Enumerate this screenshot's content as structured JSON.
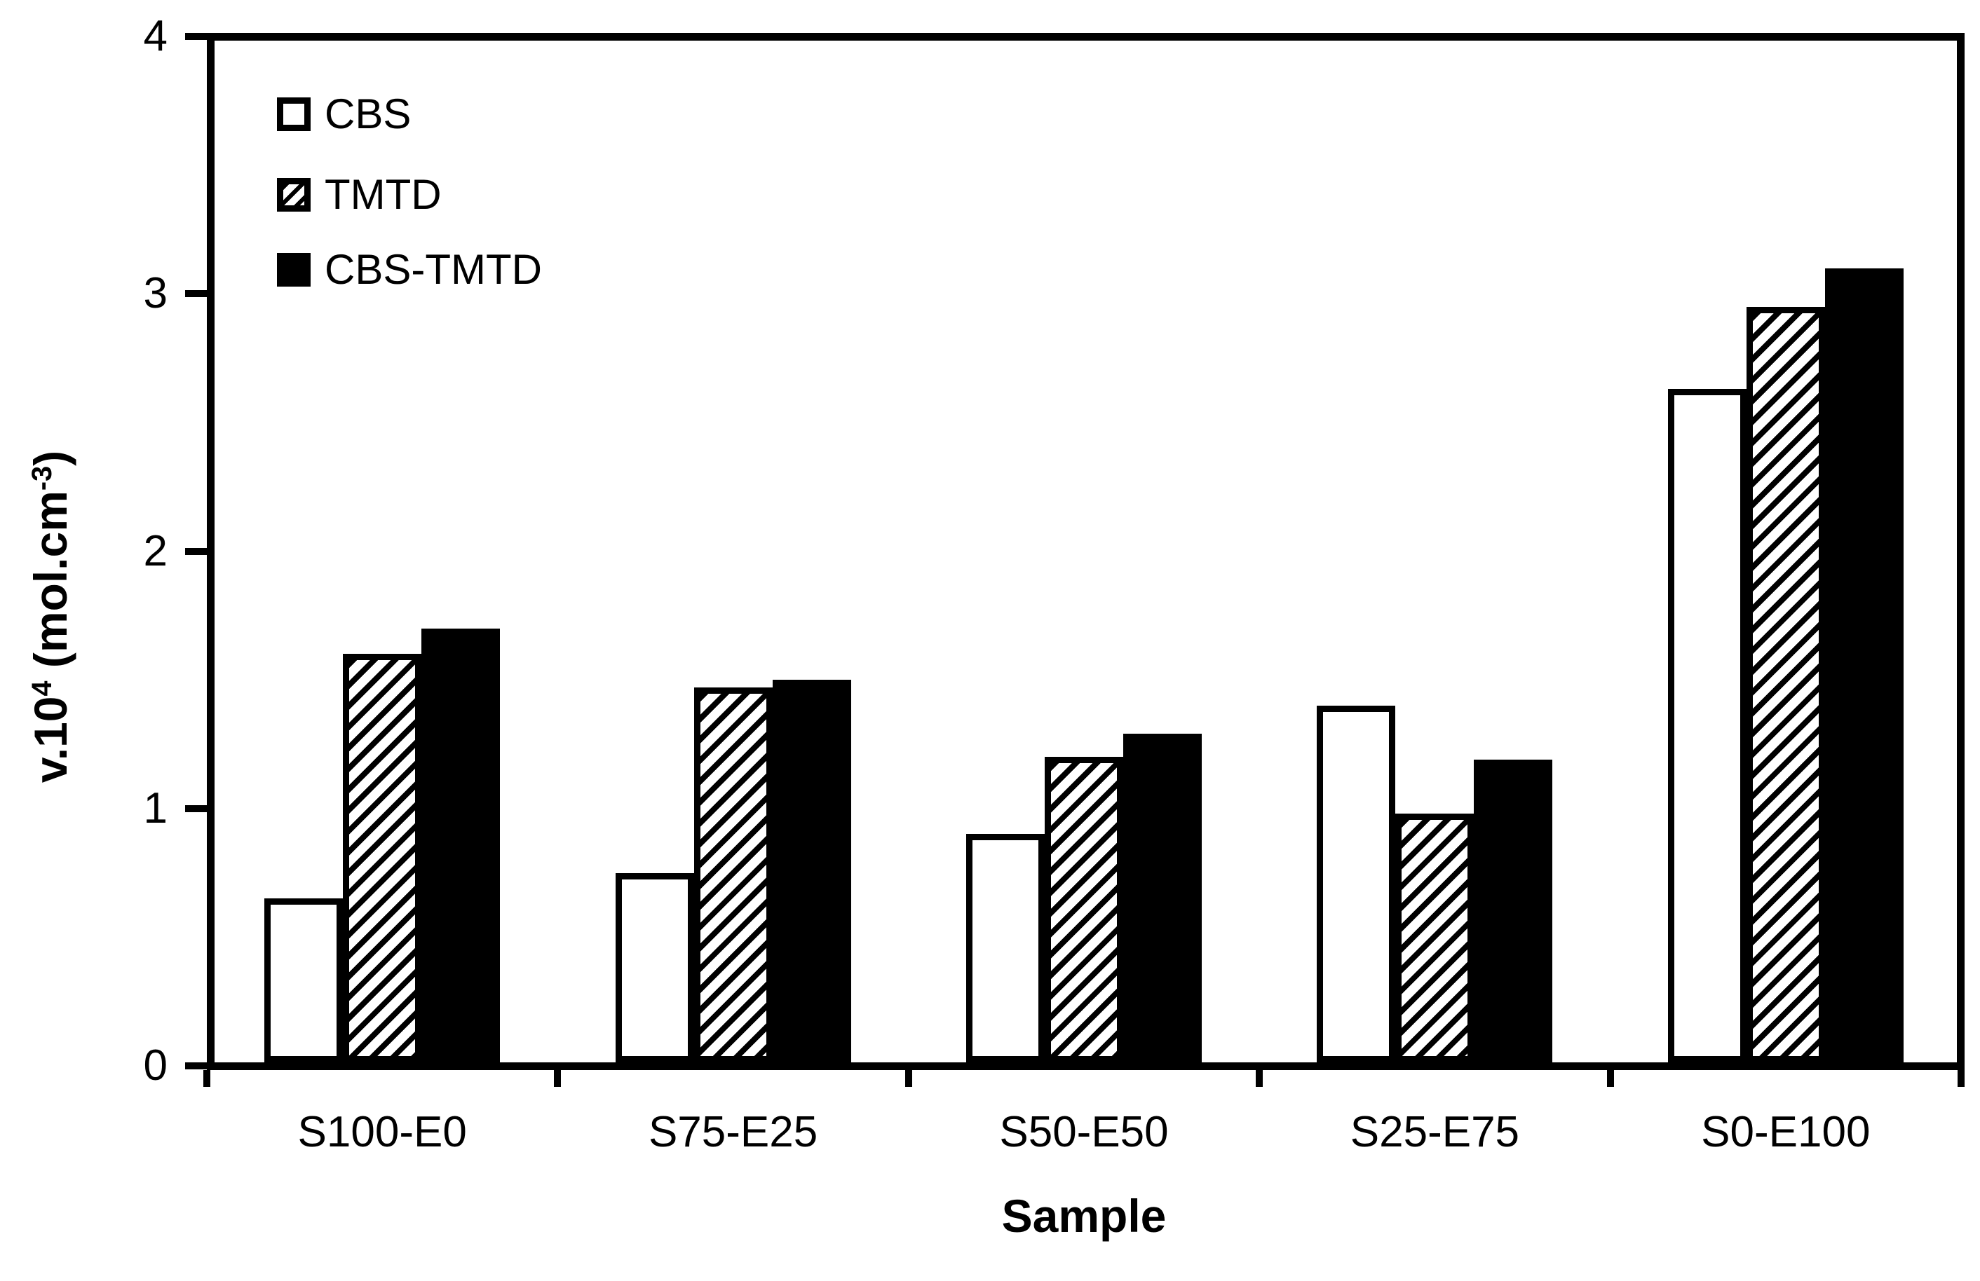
{
  "figure": {
    "background": "#ffffff",
    "ink": "#000000"
  },
  "chart_data": {
    "type": "bar",
    "title": "",
    "categories": [
      "S100-E0",
      "S75-E25",
      "S50-E50",
      "S25-E75",
      "S0-E100"
    ],
    "series": [
      {
        "name": "CBS",
        "pattern": "white",
        "values": [
          0.65,
          0.75,
          0.9,
          1.4,
          2.63
        ]
      },
      {
        "name": "TMTD",
        "pattern": "hatch",
        "values": [
          1.6,
          1.47,
          1.2,
          0.98,
          2.95
        ]
      },
      {
        "name": "CBS-TMTD",
        "pattern": "black",
        "values": [
          1.7,
          1.5,
          1.29,
          1.19,
          3.1
        ]
      }
    ],
    "xlabel": "Sample",
    "ylabel": "v.10⁴ (mol.cm⁻³)",
    "ylabel_parts": [
      {
        "text": "v.10"
      },
      {
        "text": "4",
        "sup": true
      },
      {
        "text": " (mol.cm"
      },
      {
        "text": "-3",
        "sup": true
      },
      {
        "text": ")"
      }
    ],
    "ylim": [
      0,
      4
    ],
    "yticks": [
      0,
      1,
      2,
      3,
      4
    ],
    "grid": false,
    "legend_position": "top-left"
  }
}
